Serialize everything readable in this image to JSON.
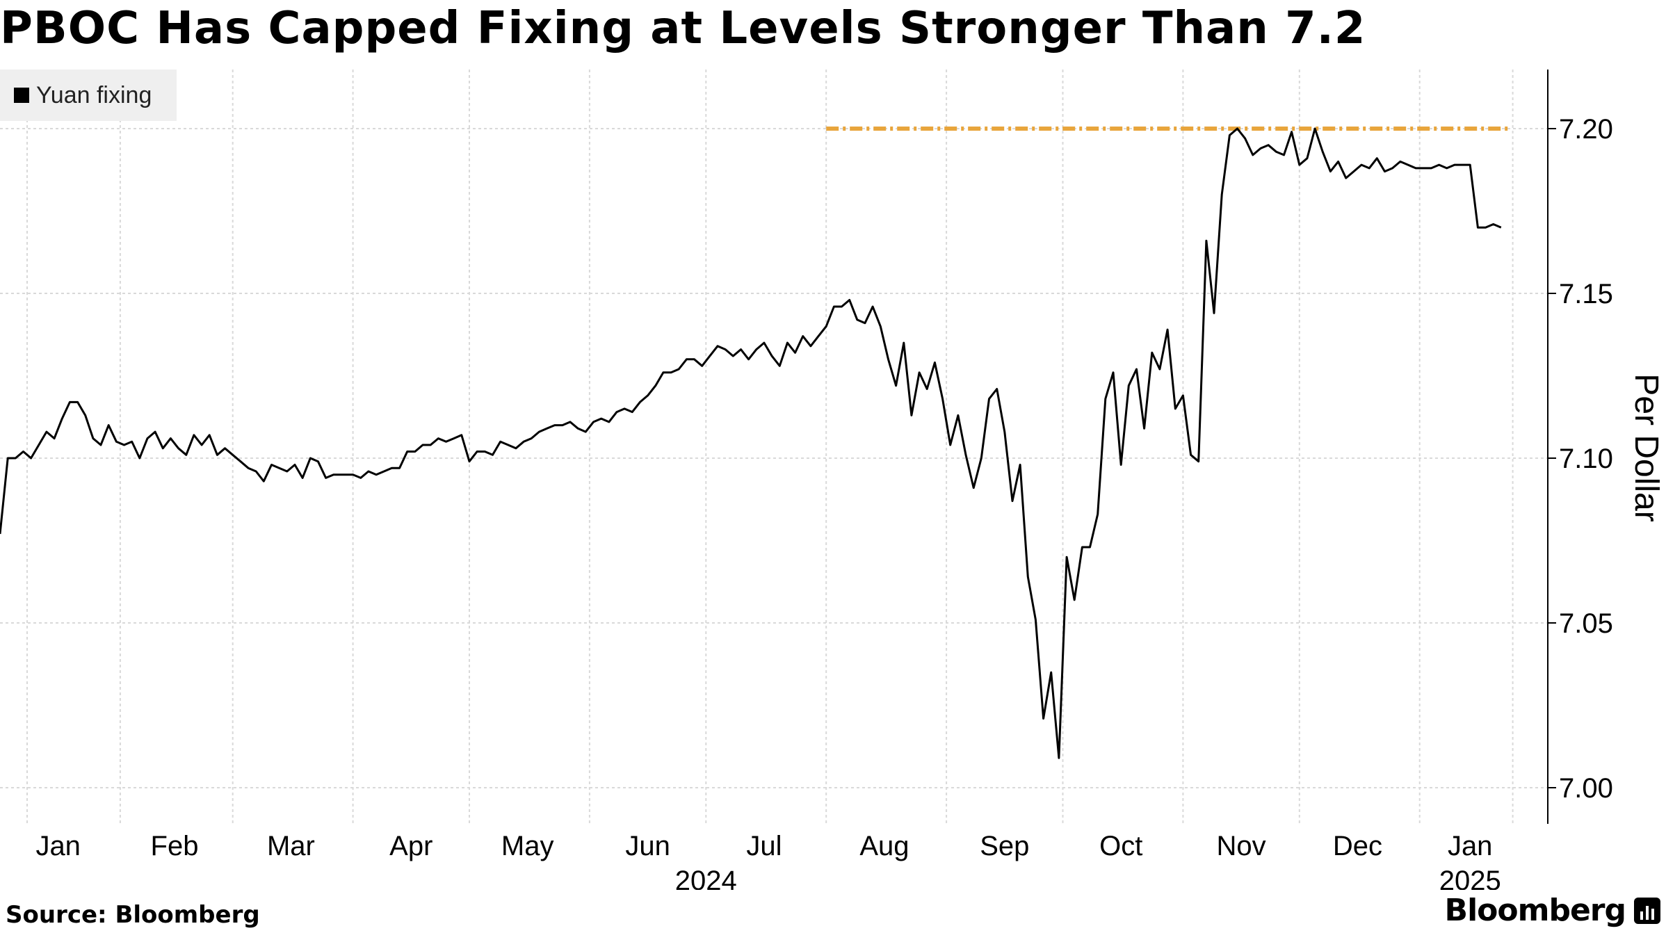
{
  "chart_data": {
    "type": "line",
    "title": "PBOC Has Capped Fixing at Levels Stronger Than 7.2",
    "ylabel": "Per Dollar",
    "ylim": [
      6.98,
      7.22
    ],
    "yticks": [
      7.0,
      7.05,
      7.1,
      7.15,
      7.2
    ],
    "ytick_labels": [
      "7.00",
      "7.05",
      "7.10",
      "7.15",
      "7.20"
    ],
    "xlim": [
      "2024-01-01",
      "2025-01-24"
    ],
    "month_labels": [
      {
        "label": "Jan",
        "date": "2024-01-16"
      },
      {
        "label": "Feb",
        "date": "2024-02-15"
      },
      {
        "label": "Mar",
        "date": "2024-03-16"
      },
      {
        "label": "Apr",
        "date": "2024-04-16"
      },
      {
        "label": "May",
        "date": "2024-05-16"
      },
      {
        "label": "Jun",
        "date": "2024-06-16"
      },
      {
        "label": "Jul",
        "date": "2024-07-16"
      },
      {
        "label": "Aug",
        "date": "2024-08-16"
      },
      {
        "label": "Sep",
        "date": "2024-09-16"
      },
      {
        "label": "Oct",
        "date": "2024-10-16"
      },
      {
        "label": "Nov",
        "date": "2024-11-16"
      },
      {
        "label": "Dec",
        "date": "2024-12-16"
      },
      {
        "label": "Jan",
        "date": "2025-01-14"
      }
    ],
    "year_labels": [
      {
        "label": "2024",
        "date": "2024-07-01"
      },
      {
        "label": "2025",
        "date": "2025-01-14"
      }
    ],
    "gridlines_x": [
      "2024-01-08",
      "2024-02-01",
      "2024-03-01",
      "2024-04-01",
      "2024-05-01",
      "2024-06-01",
      "2024-07-01",
      "2024-08-01",
      "2024-09-01",
      "2024-10-01",
      "2024-11-01",
      "2024-12-01",
      "2025-01-01",
      "2025-01-25"
    ],
    "reference_line": {
      "y": 7.2,
      "from": "2024-08-01",
      "to": "2025-01-24",
      "color": "#e8a53c",
      "style": "dash-dot"
    },
    "grid": true,
    "legend": "top-left",
    "series": [
      {
        "name": "Yuan fixing",
        "color": "#000000",
        "points": [
          [
            "2024-01-01",
            7.077
          ],
          [
            "2024-01-03",
            7.1
          ],
          [
            "2024-01-05",
            7.1
          ],
          [
            "2024-01-07",
            7.102
          ],
          [
            "2024-01-09",
            7.1
          ],
          [
            "2024-01-11",
            7.104
          ],
          [
            "2024-01-13",
            7.108
          ],
          [
            "2024-01-15",
            7.106
          ],
          [
            "2024-01-17",
            7.112
          ],
          [
            "2024-01-19",
            7.117
          ],
          [
            "2024-01-21",
            7.117
          ],
          [
            "2024-01-23",
            7.113
          ],
          [
            "2024-01-25",
            7.106
          ],
          [
            "2024-01-27",
            7.104
          ],
          [
            "2024-01-29",
            7.11
          ],
          [
            "2024-01-31",
            7.105
          ],
          [
            "2024-02-02",
            7.104
          ],
          [
            "2024-02-04",
            7.105
          ],
          [
            "2024-02-06",
            7.1
          ],
          [
            "2024-02-08",
            7.106
          ],
          [
            "2024-02-10",
            7.108
          ],
          [
            "2024-02-12",
            7.103
          ],
          [
            "2024-02-14",
            7.106
          ],
          [
            "2024-02-16",
            7.103
          ],
          [
            "2024-02-18",
            7.101
          ],
          [
            "2024-02-20",
            7.107
          ],
          [
            "2024-02-22",
            7.104
          ],
          [
            "2024-02-24",
            7.107
          ],
          [
            "2024-02-26",
            7.101
          ],
          [
            "2024-02-28",
            7.103
          ],
          [
            "2024-03-01",
            7.101
          ],
          [
            "2024-03-03",
            7.099
          ],
          [
            "2024-03-05",
            7.097
          ],
          [
            "2024-03-07",
            7.096
          ],
          [
            "2024-03-09",
            7.093
          ],
          [
            "2024-03-11",
            7.098
          ],
          [
            "2024-03-13",
            7.097
          ],
          [
            "2024-03-15",
            7.096
          ],
          [
            "2024-03-17",
            7.098
          ],
          [
            "2024-03-19",
            7.094
          ],
          [
            "2024-03-21",
            7.1
          ],
          [
            "2024-03-23",
            7.099
          ],
          [
            "2024-03-25",
            7.094
          ],
          [
            "2024-03-27",
            7.095
          ],
          [
            "2024-03-29",
            7.095
          ],
          [
            "2024-04-01",
            7.095
          ],
          [
            "2024-04-03",
            7.094
          ],
          [
            "2024-04-05",
            7.096
          ],
          [
            "2024-04-07",
            7.095
          ],
          [
            "2024-04-09",
            7.096
          ],
          [
            "2024-04-11",
            7.097
          ],
          [
            "2024-04-13",
            7.097
          ],
          [
            "2024-04-15",
            7.102
          ],
          [
            "2024-04-17",
            7.102
          ],
          [
            "2024-04-19",
            7.104
          ],
          [
            "2024-04-21",
            7.104
          ],
          [
            "2024-04-23",
            7.106
          ],
          [
            "2024-04-25",
            7.105
          ],
          [
            "2024-04-27",
            7.106
          ],
          [
            "2024-04-29",
            7.107
          ],
          [
            "2024-05-01",
            7.099
          ],
          [
            "2024-05-03",
            7.102
          ],
          [
            "2024-05-05",
            7.102
          ],
          [
            "2024-05-07",
            7.101
          ],
          [
            "2024-05-09",
            7.105
          ],
          [
            "2024-05-11",
            7.104
          ],
          [
            "2024-05-13",
            7.103
          ],
          [
            "2024-05-15",
            7.105
          ],
          [
            "2024-05-17",
            7.106
          ],
          [
            "2024-05-19",
            7.108
          ],
          [
            "2024-05-21",
            7.109
          ],
          [
            "2024-05-23",
            7.11
          ],
          [
            "2024-05-25",
            7.11
          ],
          [
            "2024-05-27",
            7.111
          ],
          [
            "2024-05-29",
            7.109
          ],
          [
            "2024-05-31",
            7.108
          ],
          [
            "2024-06-02",
            7.111
          ],
          [
            "2024-06-04",
            7.112
          ],
          [
            "2024-06-06",
            7.111
          ],
          [
            "2024-06-08",
            7.114
          ],
          [
            "2024-06-10",
            7.115
          ],
          [
            "2024-06-12",
            7.114
          ],
          [
            "2024-06-14",
            7.117
          ],
          [
            "2024-06-16",
            7.119
          ],
          [
            "2024-06-18",
            7.122
          ],
          [
            "2024-06-20",
            7.126
          ],
          [
            "2024-06-22",
            7.126
          ],
          [
            "2024-06-24",
            7.127
          ],
          [
            "2024-06-26",
            7.13
          ],
          [
            "2024-06-28",
            7.13
          ],
          [
            "2024-06-30",
            7.128
          ],
          [
            "2024-07-02",
            7.131
          ],
          [
            "2024-07-04",
            7.134
          ],
          [
            "2024-07-06",
            7.133
          ],
          [
            "2024-07-08",
            7.131
          ],
          [
            "2024-07-10",
            7.133
          ],
          [
            "2024-07-12",
            7.13
          ],
          [
            "2024-07-14",
            7.133
          ],
          [
            "2024-07-16",
            7.135
          ],
          [
            "2024-07-18",
            7.131
          ],
          [
            "2024-07-20",
            7.128
          ],
          [
            "2024-07-22",
            7.135
          ],
          [
            "2024-07-24",
            7.132
          ],
          [
            "2024-07-26",
            7.137
          ],
          [
            "2024-07-28",
            7.134
          ],
          [
            "2024-07-30",
            7.137
          ],
          [
            "2024-08-01",
            7.14
          ],
          [
            "2024-08-03",
            7.146
          ],
          [
            "2024-08-05",
            7.146
          ],
          [
            "2024-08-07",
            7.148
          ],
          [
            "2024-08-09",
            7.142
          ],
          [
            "2024-08-11",
            7.141
          ],
          [
            "2024-08-13",
            7.146
          ],
          [
            "2024-08-15",
            7.14
          ],
          [
            "2024-08-17",
            7.13
          ],
          [
            "2024-08-19",
            7.122
          ],
          [
            "2024-08-21",
            7.135
          ],
          [
            "2024-08-23",
            7.113
          ],
          [
            "2024-08-25",
            7.126
          ],
          [
            "2024-08-27",
            7.121
          ],
          [
            "2024-08-29",
            7.129
          ],
          [
            "2024-08-31",
            7.118
          ],
          [
            "2024-09-02",
            7.104
          ],
          [
            "2024-09-04",
            7.113
          ],
          [
            "2024-09-06",
            7.101
          ],
          [
            "2024-09-08",
            7.091
          ],
          [
            "2024-09-10",
            7.1
          ],
          [
            "2024-09-12",
            7.118
          ],
          [
            "2024-09-14",
            7.121
          ],
          [
            "2024-09-16",
            7.108
          ],
          [
            "2024-09-18",
            7.087
          ],
          [
            "2024-09-20",
            7.098
          ],
          [
            "2024-09-22",
            7.064
          ],
          [
            "2024-09-24",
            7.051
          ],
          [
            "2024-09-26",
            7.021
          ],
          [
            "2024-09-28",
            7.035
          ],
          [
            "2024-09-30",
            7.009
          ],
          [
            "2024-10-02",
            7.07
          ],
          [
            "2024-10-04",
            7.057
          ],
          [
            "2024-10-06",
            7.073
          ],
          [
            "2024-10-08",
            7.073
          ],
          [
            "2024-10-10",
            7.083
          ],
          [
            "2024-10-12",
            7.118
          ],
          [
            "2024-10-14",
            7.126
          ],
          [
            "2024-10-16",
            7.098
          ],
          [
            "2024-10-18",
            7.122
          ],
          [
            "2024-10-20",
            7.127
          ],
          [
            "2024-10-22",
            7.109
          ],
          [
            "2024-10-24",
            7.132
          ],
          [
            "2024-10-26",
            7.127
          ],
          [
            "2024-10-28",
            7.139
          ],
          [
            "2024-10-30",
            7.115
          ],
          [
            "2024-11-01",
            7.119
          ],
          [
            "2024-11-03",
            7.101
          ],
          [
            "2024-11-05",
            7.099
          ],
          [
            "2024-11-07",
            7.166
          ],
          [
            "2024-11-09",
            7.144
          ],
          [
            "2024-11-11",
            7.18
          ],
          [
            "2024-11-13",
            7.198
          ],
          [
            "2024-11-15",
            7.2
          ],
          [
            "2024-11-17",
            7.197
          ],
          [
            "2024-11-19",
            7.192
          ],
          [
            "2024-11-21",
            7.194
          ],
          [
            "2024-11-23",
            7.195
          ],
          [
            "2024-11-25",
            7.193
          ],
          [
            "2024-11-27",
            7.192
          ],
          [
            "2024-11-29",
            7.199
          ],
          [
            "2024-12-01",
            7.189
          ],
          [
            "2024-12-03",
            7.191
          ],
          [
            "2024-12-05",
            7.2
          ],
          [
            "2024-12-07",
            7.193
          ],
          [
            "2024-12-09",
            7.187
          ],
          [
            "2024-12-11",
            7.19
          ],
          [
            "2024-12-13",
            7.185
          ],
          [
            "2024-12-15",
            7.187
          ],
          [
            "2024-12-17",
            7.189
          ],
          [
            "2024-12-19",
            7.188
          ],
          [
            "2024-12-21",
            7.191
          ],
          [
            "2024-12-23",
            7.187
          ],
          [
            "2024-12-25",
            7.188
          ],
          [
            "2024-12-27",
            7.19
          ],
          [
            "2024-12-29",
            7.189
          ],
          [
            "2024-12-31",
            7.188
          ],
          [
            "2025-01-02",
            7.188
          ],
          [
            "2025-01-04",
            7.188
          ],
          [
            "2025-01-06",
            7.189
          ],
          [
            "2025-01-08",
            7.188
          ],
          [
            "2025-01-10",
            7.189
          ],
          [
            "2025-01-12",
            7.189
          ],
          [
            "2025-01-14",
            7.189
          ],
          [
            "2025-01-16",
            7.17
          ],
          [
            "2025-01-18",
            7.17
          ],
          [
            "2025-01-20",
            7.171
          ],
          [
            "2025-01-22",
            7.17
          ]
        ]
      }
    ]
  },
  "footer": {
    "source": "Source: Bloomberg",
    "brand": "Bloomberg"
  }
}
